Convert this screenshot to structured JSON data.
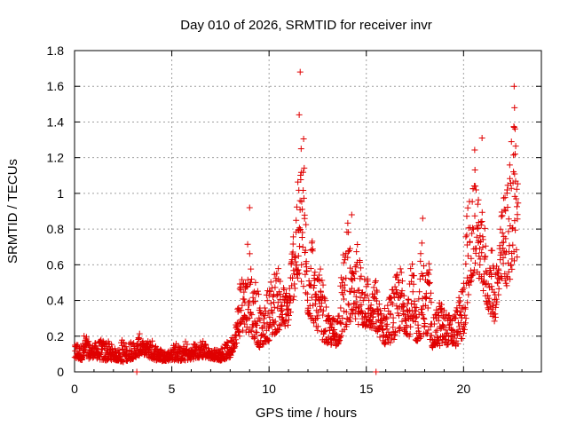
{
  "chart_data": {
    "type": "scatter",
    "title": "Day 010 of 2026, SRMTID for receiver invr",
    "xlabel": "GPS time / hours",
    "ylabel": "SRMTID / TECUs",
    "xlim": [
      0,
      24
    ],
    "ylim": [
      0,
      1.8
    ],
    "xticks": [
      0,
      5,
      10,
      15,
      20
    ],
    "xtick_labels": [
      "0",
      "5",
      "10",
      "15",
      "20"
    ],
    "yticks": [
      0,
      0.2,
      0.4,
      0.6,
      0.8,
      1.0,
      1.2,
      1.4,
      1.6,
      1.8
    ],
    "ytick_labels": [
      "0",
      "0.2",
      "0.4",
      "0.6",
      "0.8",
      "1",
      "1.2",
      "1.4",
      "1.6",
      "1.8"
    ],
    "grid": true,
    "marker": "+",
    "marker_color": "#e00000",
    "series": [
      {
        "name": "SRMTID",
        "envelope_hours": [
          0,
          0.5,
          1,
          1.5,
          2,
          2.5,
          3,
          3.5,
          4,
          4.5,
          5,
          5.5,
          6,
          6.5,
          7,
          7.5,
          8,
          8.2,
          8.6,
          9,
          9.5,
          10,
          10.5,
          11,
          11.3,
          11.6,
          12,
          12.3,
          12.7,
          13,
          13.5,
          14,
          14.4,
          14.8,
          15.2,
          15.6,
          16,
          16.4,
          16.8,
          17.2,
          17.6,
          18,
          18.4,
          18.8,
          19.2,
          19.6,
          20,
          20.3,
          20.6,
          20.9,
          21.2,
          21.6,
          22,
          22.3,
          22.6,
          22.8
        ],
        "envelope_high": [
          0.16,
          0.22,
          0.2,
          0.18,
          0.17,
          0.19,
          0.2,
          0.22,
          0.18,
          0.17,
          0.16,
          0.18,
          0.17,
          0.2,
          0.16,
          0.14,
          0.18,
          0.3,
          0.65,
          0.9,
          0.45,
          0.5,
          0.7,
          0.6,
          0.9,
          1.68,
          0.95,
          0.8,
          0.55,
          0.45,
          0.4,
          0.88,
          0.75,
          0.8,
          0.5,
          0.55,
          0.4,
          0.5,
          0.74,
          0.65,
          0.55,
          0.88,
          0.45,
          0.4,
          0.45,
          0.5,
          0.55,
          1.25,
          1.31,
          1.05,
          0.75,
          0.7,
          1.18,
          1.1,
          1.6,
          1.25
        ],
        "envelope_low": [
          0.05,
          0.04,
          0.06,
          0.04,
          0.05,
          0.03,
          0.05,
          0.08,
          0.05,
          0.04,
          0.05,
          0.04,
          0.05,
          0.06,
          0.06,
          0.05,
          0.06,
          0.1,
          0.15,
          0.1,
          0.08,
          0.12,
          0.15,
          0.2,
          0.35,
          0.3,
          0.2,
          0.18,
          0.12,
          0.1,
          0.1,
          0.15,
          0.2,
          0.15,
          0.2,
          0.15,
          0.1,
          0.12,
          0.15,
          0.12,
          0.1,
          0.1,
          0.08,
          0.1,
          0.1,
          0.08,
          0.12,
          0.3,
          0.45,
          0.4,
          0.3,
          0.2,
          0.4,
          0.35,
          0.45,
          0.5
        ],
        "peaks": [
          {
            "x": 11.6,
            "y": 1.68
          },
          {
            "x": 11.55,
            "y": 1.44
          },
          {
            "x": 11.65,
            "y": 1.25
          },
          {
            "x": 22.6,
            "y": 1.6
          },
          {
            "x": 22.62,
            "y": 1.48
          },
          {
            "x": 22.6,
            "y": 1.37
          },
          {
            "x": 22.65,
            "y": 1.22
          },
          {
            "x": 20.95,
            "y": 1.31
          },
          {
            "x": 9.0,
            "y": 0.92
          },
          {
            "x": 14.25,
            "y": 0.88
          },
          {
            "x": 17.9,
            "y": 0.86
          },
          {
            "x": 3.2,
            "y": 0.0
          },
          {
            "x": 15.5,
            "y": 0.0
          }
        ]
      }
    ]
  }
}
